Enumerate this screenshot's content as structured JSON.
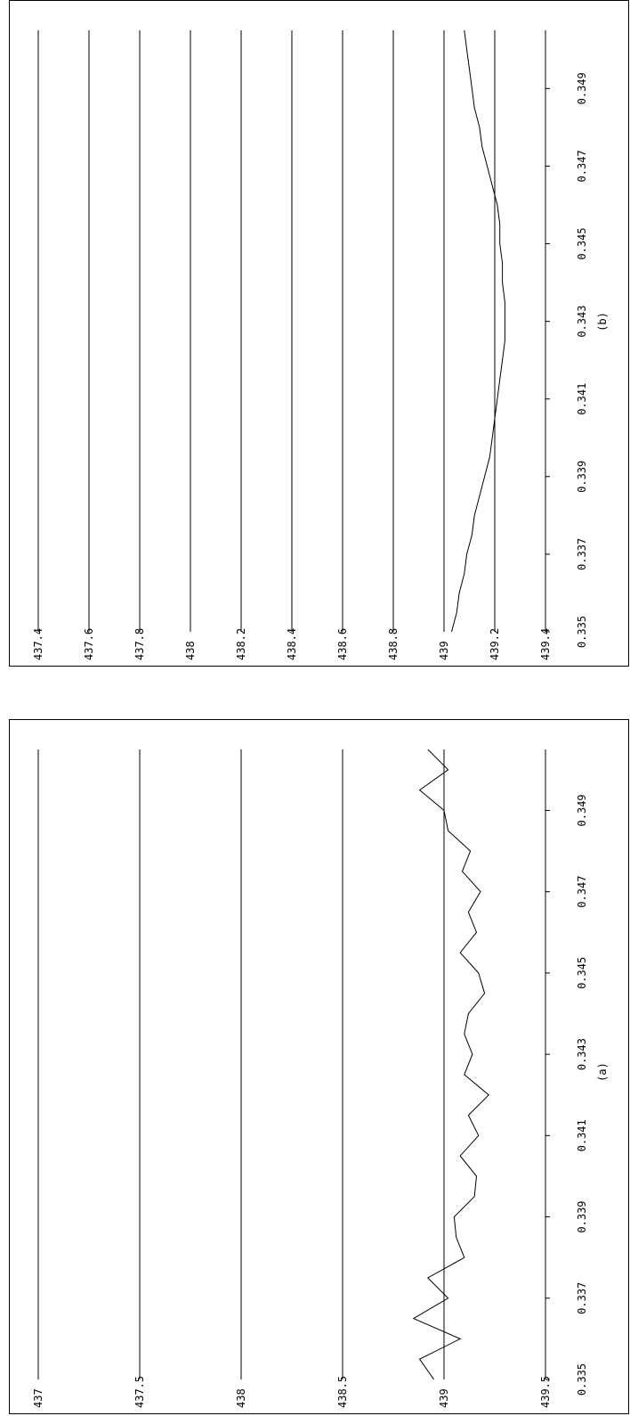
{
  "chart_data": [
    {
      "type": "line",
      "caption": "(b)",
      "x_ticks": [
        "0.335",
        "0.337",
        "0.339",
        "0.341",
        "0.343",
        "0.345",
        "0.347",
        "0.349"
      ],
      "xlim": [
        0.335,
        0.3505
      ],
      "y_ticks": [
        "439.4",
        "439.2",
        "439",
        "438.8",
        "438.6",
        "438.4",
        "438.2",
        "438",
        "437.8",
        "437.6",
        "437.4"
      ],
      "ylim": [
        437.4,
        439.4
      ],
      "grid": "horizontal",
      "orientation": "rotated 90 degrees clockwise",
      "series": [
        {
          "x": [
            0.335,
            0.3355,
            0.336,
            0.3365,
            0.337,
            0.3375,
            0.338,
            0.3385,
            0.339,
            0.3395,
            0.34,
            0.3405,
            0.341,
            0.3415,
            0.342,
            0.3425,
            0.343,
            0.3435,
            0.344,
            0.3445,
            0.345,
            0.3455,
            0.346,
            0.3465,
            0.347,
            0.3475,
            0.348,
            0.3485,
            0.349,
            0.3495,
            0.35,
            0.3505
          ],
          "y": [
            439.03,
            439.05,
            439.06,
            439.08,
            439.09,
            439.11,
            439.12,
            439.14,
            439.16,
            439.18,
            439.19,
            439.2,
            439.21,
            439.22,
            439.23,
            439.24,
            439.24,
            439.24,
            439.23,
            439.23,
            439.22,
            439.22,
            439.21,
            439.19,
            439.17,
            439.15,
            439.14,
            439.12,
            439.11,
            439.1,
            439.09,
            439.08
          ]
        }
      ]
    },
    {
      "type": "line",
      "caption": "(a)",
      "x_ticks": [
        "0.335",
        "0.337",
        "0.339",
        "0.341",
        "0.343",
        "0.345",
        "0.347",
        "0.349"
      ],
      "xlim": [
        0.335,
        0.3505
      ],
      "y_ticks": [
        "439.5",
        "439",
        "438.5",
        "438",
        "437.5",
        "437"
      ],
      "ylim": [
        437,
        439.5
      ],
      "grid": "horizontal",
      "orientation": "rotated 90 degrees clockwise",
      "series": [
        {
          "x": [
            0.335,
            0.3355,
            0.336,
            0.3365,
            0.337,
            0.3375,
            0.338,
            0.3385,
            0.339,
            0.3395,
            0.34,
            0.3405,
            0.341,
            0.3415,
            0.342,
            0.3425,
            0.343,
            0.3435,
            0.344,
            0.3445,
            0.345,
            0.3455,
            0.346,
            0.3465,
            0.347,
            0.3475,
            0.348,
            0.3485,
            0.349,
            0.3495,
            0.35,
            0.3505
          ],
          "y": [
            438.95,
            438.88,
            439.08,
            438.85,
            439.02,
            438.92,
            439.1,
            439.06,
            439.05,
            439.15,
            439.16,
            439.08,
            439.17,
            439.12,
            439.22,
            439.1,
            439.14,
            439.1,
            439.12,
            439.2,
            439.17,
            439.08,
            439.16,
            439.12,
            439.18,
            439.09,
            439.13,
            439.02,
            439.0,
            438.88,
            439.02,
            438.92
          ]
        }
      ]
    }
  ]
}
